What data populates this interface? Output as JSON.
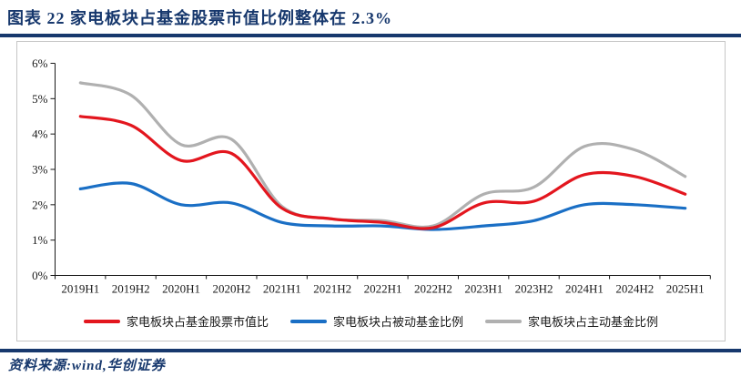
{
  "header": {
    "title": "图表 22   家电板块占基金股票市值比例整体在 2.3%"
  },
  "footer": {
    "source": "资料来源:wind,华创证券"
  },
  "colors": {
    "accent_navy": "#17386d",
    "chart_border": "#c6c6c6",
    "axis": "#1a1a1a",
    "tick_label": "#1a1a1a"
  },
  "chart_data": {
    "type": "line",
    "title": "家电板块占基金股票市值比例整体在 2.3%",
    "categories": [
      "2019H1",
      "2019H2",
      "2020H1",
      "2020H2",
      "2021H1",
      "2021H2",
      "2022H1",
      "2022H2",
      "2023H1",
      "2023H2",
      "2024H1",
      "2024H2",
      "2025H1"
    ],
    "series": [
      {
        "name": "家电板块占基金股票市值比",
        "color": "#e3161e",
        "values": [
          4.5,
          4.25,
          3.25,
          3.45,
          1.9,
          1.6,
          1.5,
          1.35,
          2.05,
          2.1,
          2.85,
          2.8,
          2.3
        ]
      },
      {
        "name": "家电板块占被动基金比例",
        "color": "#1a6fc5",
        "values": [
          2.45,
          2.6,
          2.0,
          2.05,
          1.5,
          1.4,
          1.4,
          1.3,
          1.4,
          1.55,
          2.0,
          2.0,
          1.9
        ]
      },
      {
        "name": "家电板块占主动基金比例",
        "color": "#b0b0b0",
        "values": [
          5.45,
          5.1,
          3.7,
          3.85,
          1.95,
          1.6,
          1.55,
          1.4,
          2.3,
          2.5,
          3.65,
          3.55,
          2.8
        ]
      }
    ],
    "ylim": [
      0,
      6
    ],
    "ytick_labels": [
      "0%",
      "1%",
      "2%",
      "3%",
      "4%",
      "5%",
      "6%"
    ],
    "grid": false,
    "smooth": true,
    "legend_position": "bottom",
    "draw_order": [
      2,
      1,
      0
    ]
  }
}
